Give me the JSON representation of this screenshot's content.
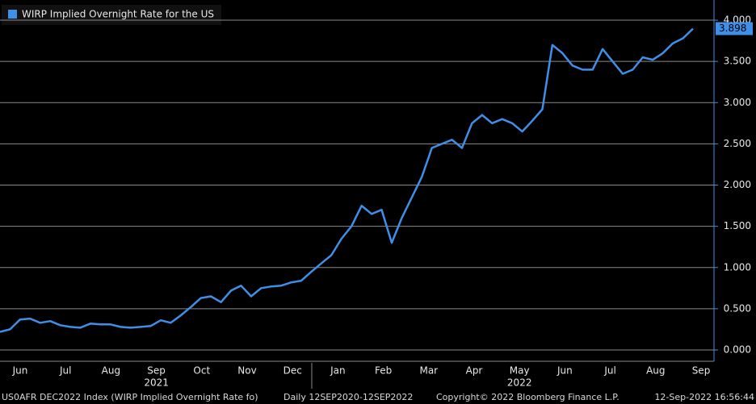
{
  "chart_data": {
    "type": "line",
    "legend": "WIRP Implied Overnight Rate for the US",
    "color": "#3f8fe8",
    "xticks": [
      "Jun",
      "Jul",
      "Aug",
      "Sep",
      "Oct",
      "Nov",
      "Dec",
      "Jan",
      "Feb",
      "Mar",
      "Apr",
      "May",
      "Jun",
      "Jul",
      "Aug",
      "Sep"
    ],
    "years": [
      "2021",
      "2022"
    ],
    "values": [
      0.22,
      0.25,
      0.37,
      0.38,
      0.33,
      0.35,
      0.3,
      0.28,
      0.27,
      0.32,
      0.31,
      0.31,
      0.28,
      0.27,
      0.28,
      0.29,
      0.36,
      0.33,
      0.42,
      0.52,
      0.63,
      0.65,
      0.58,
      0.72,
      0.78,
      0.65,
      0.75,
      0.77,
      0.78,
      0.82,
      0.84,
      0.95,
      1.05,
      1.15,
      1.35,
      1.5,
      1.75,
      1.65,
      1.7,
      1.3,
      1.6,
      1.85,
      2.1,
      2.45,
      2.5,
      2.55,
      2.45,
      2.75,
      2.85,
      2.75,
      2.8,
      2.75,
      2.65,
      2.78,
      2.92,
      3.7,
      3.6,
      3.45,
      3.4,
      3.4,
      3.65,
      3.5,
      3.35,
      3.4,
      3.55,
      3.52,
      3.6,
      3.72,
      3.78,
      3.898
    ],
    "last_label": "3.898",
    "ylim": [
      -0.137,
      4.245
    ],
    "yticks": [
      {
        "value": 0,
        "label": "0.000"
      },
      {
        "value": 0.5,
        "label": "0.500"
      },
      {
        "value": 1,
        "label": "1.000"
      },
      {
        "value": 1.5,
        "label": "1.500"
      },
      {
        "value": 2,
        "label": "2.000"
      },
      {
        "value": 2.5,
        "label": "2.500"
      },
      {
        "value": 3,
        "label": "3.000"
      },
      {
        "value": 3.5,
        "label": "3.500"
      },
      {
        "value": 4,
        "label": "4.000"
      }
    ],
    "grid": true,
    "footer": [
      "US0AFR DEC2022 Index (WIRP Implied Overnight Rate fo)",
      "Daily 12SEP2020-12SEP2022",
      "Copyright© 2022 Bloomberg Finance L.P.",
      "12-Sep-2022 16:56:44"
    ]
  }
}
